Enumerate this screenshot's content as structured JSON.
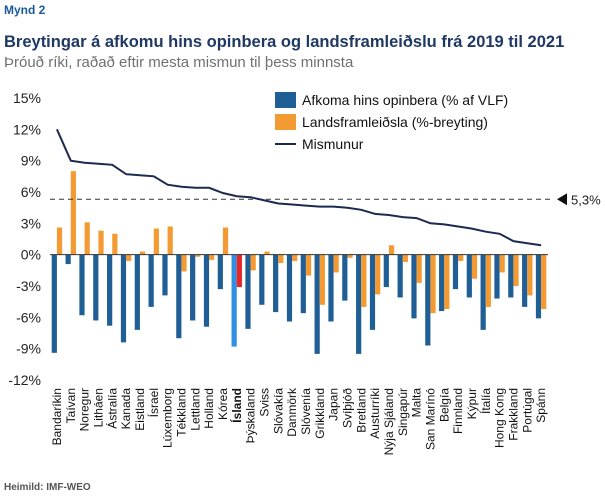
{
  "header": {
    "figure_label": "Mynd 2",
    "title": "Breytingar á afkomu hins opinbera og landsframleiðslu frá 2019 til 2021",
    "subtitle": "Þróuð ríki, raðað eftir mesta mismun til þess minnsta"
  },
  "footer": {
    "source": "Heimild: IMF-WEO"
  },
  "colors": {
    "afkoma": "#1f5f95",
    "landsframleidsla": "#f39a32",
    "mismunur": "#1b2a4e",
    "iceland_afkoma": "#2f8fe0",
    "iceland_landsframleidsla": "#e8262a",
    "axis": "#333333",
    "reference": "#333333"
  },
  "chart_data": {
    "type": "bar",
    "title": "Breytingar á afkomu hins opinbera og landsframleiðslu frá 2019 til 2021",
    "xlabel": "",
    "ylabel": "",
    "ylim": [
      -12,
      15
    ],
    "yticks": [
      -12,
      -9,
      -6,
      -3,
      0,
      3,
      6,
      9,
      12,
      15
    ],
    "ytick_labels": [
      "-12%",
      "-9%",
      "-6%",
      "-3%",
      "0%",
      "3%",
      "6%",
      "9%",
      "12%",
      "15%"
    ],
    "categories": [
      "Bandaríkin",
      "Taívan",
      "Noregur",
      "Litháen",
      "Ástralía",
      "Kanada",
      "Eistland",
      "Ísrael",
      "Lúxemborg",
      "Tékkland",
      "Lettland",
      "Holland",
      "Kórea",
      "Ísland",
      "Þýskaland",
      "Sviss",
      "Slóvakía",
      "Danmörk",
      "Slóvenía",
      "Grikkland",
      "Japan",
      "Svíþjóð",
      "Bretland",
      "Austurríki",
      "Nýja Sjáland",
      "Singapúr",
      "Malta",
      "San Marínó",
      "Belgía",
      "Finnland",
      "Kýpur",
      "Ítalía",
      "Hong Kong",
      "Frakkland",
      "Portúgal",
      "Spánn"
    ],
    "highlight_category": "Ísland",
    "series": [
      {
        "name": "Afkoma hins opinbera (% af VLF)",
        "kind": "bar",
        "values": [
          -9.4,
          -0.9,
          -5.8,
          -6.3,
          -6.8,
          -8.4,
          -7.2,
          -5.0,
          -3.9,
          -8.0,
          -6.3,
          -6.9,
          -3.3,
          -8.8,
          -7.1,
          -4.8,
          -5.5,
          -6.4,
          -5.6,
          -9.5,
          -6.4,
          -4.4,
          -9.5,
          -7.2,
          -3.1,
          -4.1,
          -6.1,
          -8.7,
          -5.4,
          -3.3,
          -4.1,
          -7.2,
          -4.2,
          -4.1,
          -5.0,
          -6.1
        ]
      },
      {
        "name": "Landsframleiðsla (%-breyting)",
        "kind": "bar",
        "values": [
          2.6,
          8.0,
          3.1,
          2.3,
          2.0,
          -0.6,
          0.3,
          2.5,
          2.7,
          -1.6,
          -0.2,
          -0.5,
          2.6,
          -3.1,
          -1.5,
          0.3,
          -0.8,
          -0.6,
          -2.0,
          -4.8,
          -1.7,
          -0.3,
          -5.0,
          -3.8,
          0.9,
          -0.7,
          -2.7,
          -5.6,
          -5.2,
          -0.6,
          -2.3,
          -5.0,
          -1.7,
          -3.0,
          -3.9,
          -5.2
        ]
      },
      {
        "name": "Mismunur",
        "kind": "line",
        "values": [
          12.0,
          9.0,
          8.8,
          8.7,
          8.6,
          7.7,
          7.6,
          7.5,
          6.7,
          6.5,
          6.4,
          6.4,
          5.9,
          5.6,
          5.5,
          5.2,
          4.9,
          4.8,
          4.7,
          4.6,
          4.6,
          4.5,
          4.3,
          3.9,
          3.8,
          3.6,
          3.5,
          3.0,
          2.9,
          2.7,
          2.5,
          2.2,
          2.0,
          1.3,
          1.1,
          0.9
        ]
      }
    ],
    "reference_line": {
      "value": 5.3,
      "label": "5,3%",
      "style": "dashed",
      "marker": "left-pointing triangle"
    },
    "legend_position": "top-center",
    "grid": false
  }
}
